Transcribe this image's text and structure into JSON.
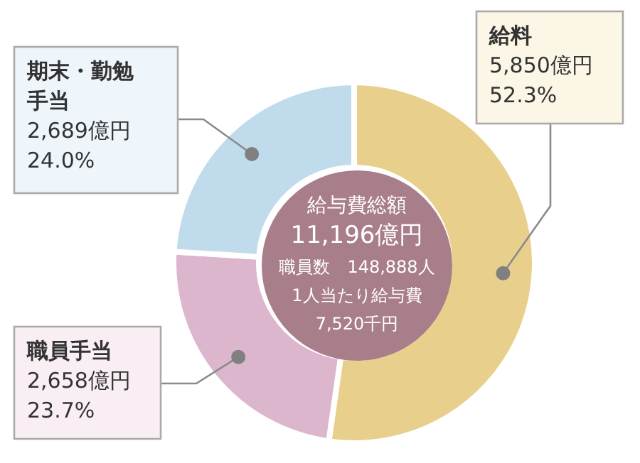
{
  "chart_data": {
    "type": "donut",
    "title": "給与費総額",
    "categories": [
      "給料",
      "職員手当",
      "期末・勤勉手当"
    ],
    "values": [
      5850,
      2658,
      2689
    ],
    "colors": [
      "#e8d08c",
      "#dcb6cc",
      "#c0dbec"
    ],
    "value_labels": [
      "5,850億円\n52.3%",
      "2,658億円\n23.7%",
      "2,689億円\n24.0%"
    ],
    "annotations": [
      "11,196億円",
      "職員数　148,888人",
      "1人当たり給与費",
      "7,520千円"
    ]
  }
}
